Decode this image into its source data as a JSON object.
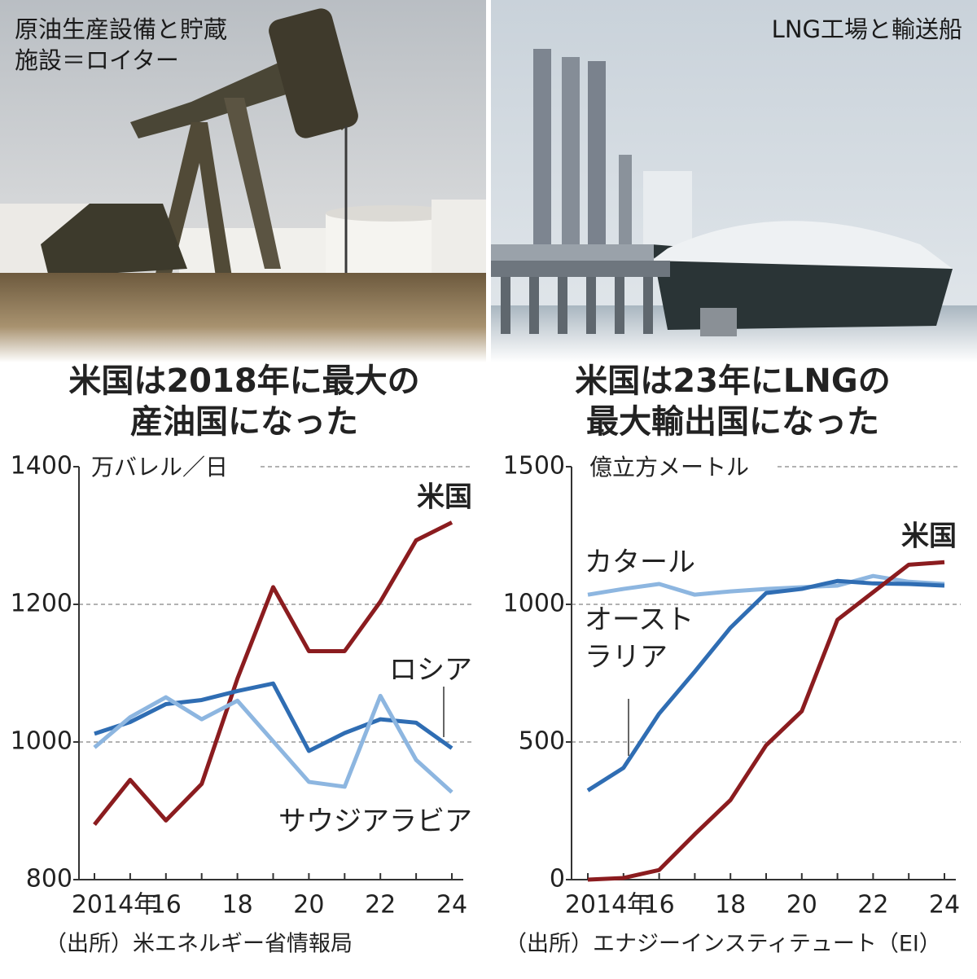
{
  "photos": [
    {
      "caption": [
        "原油生産設備と貯蔵",
        "施設＝ロイター"
      ]
    },
    {
      "caption": [
        "LNG工場と輸送船"
      ]
    }
  ],
  "chart_data": [
    {
      "type": "line",
      "title": [
        "米国は2018年に最大の",
        "産油国になった"
      ],
      "y_unit": "万バレル／日",
      "source": "（出所）米エネルギー省情報局",
      "x": [
        2014,
        2015,
        2016,
        2017,
        2018,
        2019,
        2020,
        2021,
        2022,
        2023,
        2024
      ],
      "xticks": [
        {
          "value": 2014,
          "label": "2014年"
        },
        {
          "value": 2016,
          "label": "16"
        },
        {
          "value": 2018,
          "label": "18"
        },
        {
          "value": 2020,
          "label": "20"
        },
        {
          "value": 2022,
          "label": "22"
        },
        {
          "value": 2024,
          "label": "24"
        }
      ],
      "ylim": [
        800,
        1400
      ],
      "yticks": [
        800,
        1000,
        1200,
        1400
      ],
      "grid": true,
      "series": [
        {
          "name": "米国",
          "color": "#8b1c1f",
          "values": [
            880,
            945,
            886,
            939,
            1092,
            1225,
            1132,
            1132,
            1204,
            1293,
            1319
          ]
        },
        {
          "name": "ロシア",
          "color": "#2f6db3",
          "values": [
            1012,
            1029,
            1055,
            1061,
            1074,
            1085,
            987,
            1013,
            1033,
            1028,
            991
          ]
        },
        {
          "name": "サウジアラビア",
          "color": "#8db6e0",
          "values": [
            992,
            1036,
            1065,
            1033,
            1060,
            1001,
            942,
            935,
            1067,
            974,
            927
          ]
        }
      ]
    },
    {
      "type": "line",
      "title": [
        "米国は23年にLNGの",
        "最大輸出国になった"
      ],
      "y_unit": "億立方メートル",
      "source": "（出所）エナジーインスティテュート（EI）",
      "x": [
        2014,
        2015,
        2016,
        2017,
        2018,
        2019,
        2020,
        2021,
        2022,
        2023,
        2024
      ],
      "xticks": [
        {
          "value": 2014,
          "label": "2014年"
        },
        {
          "value": 2016,
          "label": "16"
        },
        {
          "value": 2018,
          "label": "18"
        },
        {
          "value": 2020,
          "label": "20"
        },
        {
          "value": 2022,
          "label": "22"
        },
        {
          "value": 2024,
          "label": "24"
        }
      ],
      "ylim": [
        0,
        1500
      ],
      "yticks": [
        0,
        500,
        1000,
        1500
      ],
      "grid": true,
      "series": [
        {
          "name": "カタール",
          "color": "#8db6e0",
          "values": [
            1035,
            1056,
            1074,
            1035,
            1047,
            1056,
            1062,
            1068,
            1103,
            1082,
            1074
          ]
        },
        {
          "name": "オーストラリア",
          "color": "#2f6db3",
          "values": [
            324,
            406,
            603,
            756,
            915,
            1041,
            1056,
            1085,
            1076,
            1074,
            1068
          ]
        },
        {
          "name": "米国",
          "color": "#8b1c1f",
          "values": [
            0,
            6,
            35,
            165,
            289,
            488,
            612,
            944,
            1044,
            1144,
            1153
          ]
        }
      ]
    }
  ]
}
